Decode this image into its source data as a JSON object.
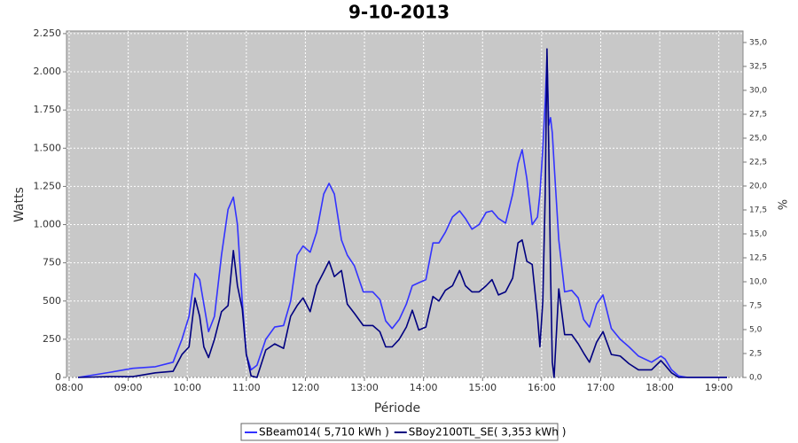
{
  "chart_data": {
    "type": "line",
    "title": "9-10-2013",
    "xlabel": "Période",
    "ylabel": "Watts",
    "y2label": "%",
    "x": [
      8.15,
      8.71,
      9.08,
      9.46,
      9.76,
      9.91,
      10.03,
      10.13,
      10.21,
      10.28,
      10.36,
      10.46,
      10.58,
      10.69,
      10.78,
      10.85,
      10.93,
      11.0,
      11.08,
      11.18,
      11.33,
      11.48,
      11.63,
      11.75,
      11.86,
      11.96,
      12.08,
      12.19,
      12.31,
      12.4,
      12.49,
      12.61,
      12.71,
      12.83,
      12.98,
      13.14,
      13.26,
      13.36,
      13.47,
      13.59,
      13.71,
      13.81,
      13.92,
      14.04,
      14.16,
      14.26,
      14.37,
      14.49,
      14.61,
      14.71,
      14.82,
      14.94,
      15.06,
      15.16,
      15.27,
      15.39,
      15.51,
      15.6,
      15.67,
      15.75,
      15.84,
      15.93,
      15.97,
      16.02,
      16.06,
      16.09,
      16.12,
      16.15,
      16.18,
      16.21,
      16.29,
      16.39,
      16.51,
      16.62,
      16.71,
      16.81,
      16.93,
      17.04,
      17.18,
      17.33,
      17.48,
      17.64,
      17.86,
      18.02,
      18.09,
      18.2,
      18.32,
      18.47,
      19.14
    ],
    "series": [
      {
        "name": "SBeam014( 5,710 kWh )",
        "color": "#3333ff",
        "values": [
          0,
          35,
          60,
          70,
          100,
          250,
          400,
          680,
          640,
          480,
          300,
          400,
          800,
          1100,
          1180,
          1000,
          500,
          150,
          50,
          80,
          250,
          330,
          340,
          500,
          800,
          860,
          820,
          950,
          1200,
          1270,
          1200,
          900,
          800,
          730,
          560,
          560,
          510,
          370,
          320,
          380,
          480,
          600,
          620,
          640,
          880,
          880,
          950,
          1050,
          1090,
          1040,
          970,
          1000,
          1080,
          1090,
          1040,
          1010,
          1200,
          1400,
          1490,
          1300,
          1000,
          1050,
          1200,
          1500,
          1800,
          2100,
          1650,
          1700,
          1600,
          1400,
          900,
          560,
          570,
          520,
          380,
          330,
          480,
          540,
          320,
          250,
          200,
          140,
          100,
          140,
          120,
          50,
          10,
          0,
          0
        ]
      },
      {
        "name": "SBoy2100TL_SE( 3,353 kWh )",
        "color": "#000080",
        "values": [
          0,
          5,
          5,
          30,
          40,
          150,
          200,
          520,
          400,
          200,
          130,
          250,
          430,
          470,
          830,
          600,
          450,
          150,
          10,
          0,
          180,
          220,
          190,
          400,
          470,
          520,
          430,
          600,
          690,
          760,
          660,
          700,
          480,
          420,
          340,
          340,
          300,
          200,
          200,
          250,
          330,
          440,
          310,
          330,
          530,
          500,
          570,
          600,
          700,
          600,
          560,
          560,
          600,
          640,
          540,
          560,
          650,
          880,
          900,
          760,
          740,
          400,
          200,
          500,
          1200,
          2150,
          1500,
          700,
          100,
          0,
          580,
          280,
          280,
          220,
          160,
          100,
          230,
          300,
          150,
          140,
          90,
          50,
          50,
          110,
          80,
          30,
          0,
          0,
          0
        ]
      }
    ],
    "xlim": [
      7.955,
      19.41
    ],
    "xticks": [
      {
        "value": 8,
        "label": "08:00"
      },
      {
        "value": 9,
        "label": "09:00"
      },
      {
        "value": 10,
        "label": "10:00"
      },
      {
        "value": 11,
        "label": "11:00"
      },
      {
        "value": 12,
        "label": "12:00"
      },
      {
        "value": 13,
        "label": "13:00"
      },
      {
        "value": 14,
        "label": "14:00"
      },
      {
        "value": 15,
        "label": "15:00"
      },
      {
        "value": 16,
        "label": "16:00"
      },
      {
        "value": 17,
        "label": "17:00"
      },
      {
        "value": 18,
        "label": "18:00"
      },
      {
        "value": 19,
        "label": "19:00"
      }
    ],
    "ylim": [
      0,
      2267
    ],
    "yticks": [
      0,
      250,
      500,
      750,
      {
        "value": 1000,
        "label": "1.000"
      },
      {
        "value": 1250,
        "label": "1.250"
      },
      {
        "value": 1500,
        "label": "1.500"
      },
      {
        "value": 1750,
        "label": "1.750"
      },
      {
        "value": 2000,
        "label": "2.000"
      },
      {
        "value": 2250,
        "label": "2.250"
      }
    ],
    "y2lim": [
      0,
      36.2
    ],
    "y2ticks": [
      {
        "value": 0,
        "label": "0,0"
      },
      {
        "value": 2.5,
        "label": "2,5"
      },
      {
        "value": 5,
        "label": "5,0"
      },
      {
        "value": 7.5,
        "label": "7,5"
      },
      {
        "value": 10,
        "label": "10,0"
      },
      {
        "value": 12.5,
        "label": "12,5"
      },
      {
        "value": 15,
        "label": "15,0"
      },
      {
        "value": 17.5,
        "label": "17,5"
      },
      {
        "value": 20,
        "label": "20,0"
      },
      {
        "value": 22.5,
        "label": "22,5"
      },
      {
        "value": 25,
        "label": "25,0"
      },
      {
        "value": 27.5,
        "label": "27,5"
      },
      {
        "value": 30,
        "label": "30,0"
      },
      {
        "value": 32.5,
        "label": "32,5"
      },
      {
        "value": 35,
        "label": "35,0"
      }
    ],
    "grid": true
  }
}
